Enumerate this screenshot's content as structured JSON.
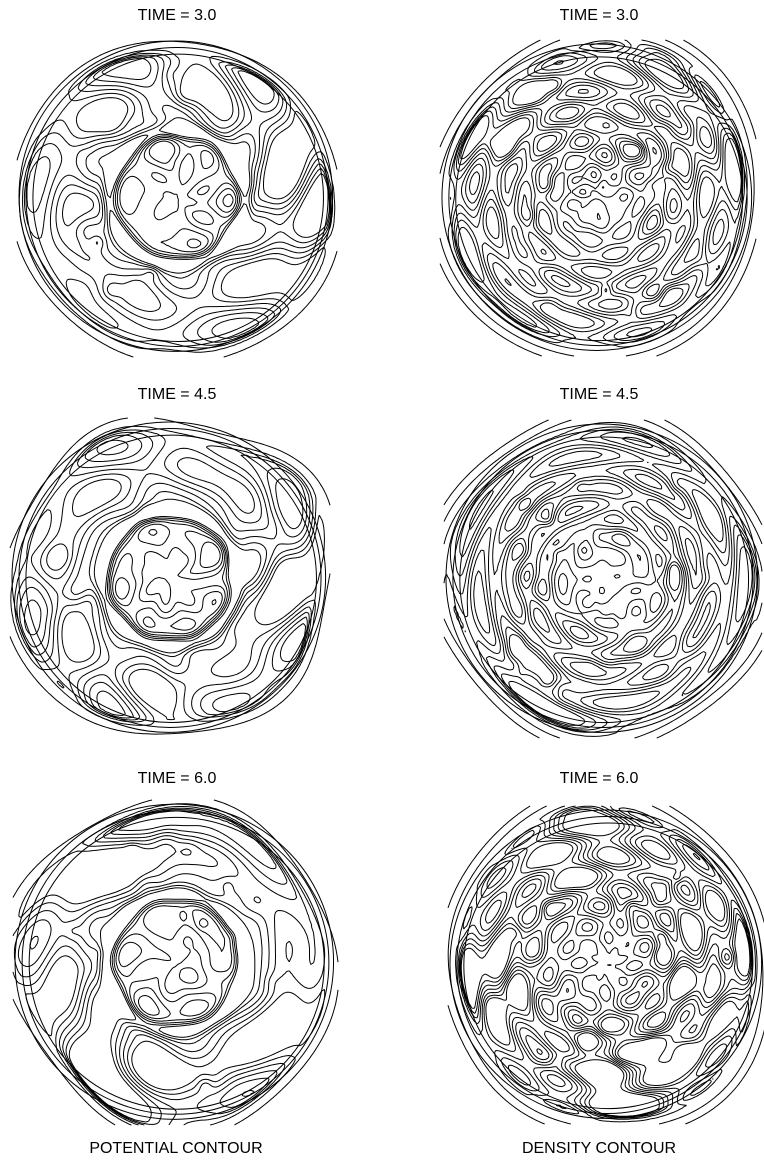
{
  "panels": [
    {
      "column": "potential",
      "time_label": "TIME = 3.0"
    },
    {
      "column": "density",
      "time_label": "TIME = 3.0"
    },
    {
      "column": "potential",
      "time_label": "TIME = 4.5"
    },
    {
      "column": "density",
      "time_label": "TIME = 4.5"
    },
    {
      "column": "potential",
      "time_label": "TIME = 6.0"
    },
    {
      "column": "density",
      "time_label": "TIME = 6.0"
    }
  ],
  "captions": {
    "potential": "POTENTIAL CONTOUR",
    "density": "DENSITY CONTOUR"
  }
}
